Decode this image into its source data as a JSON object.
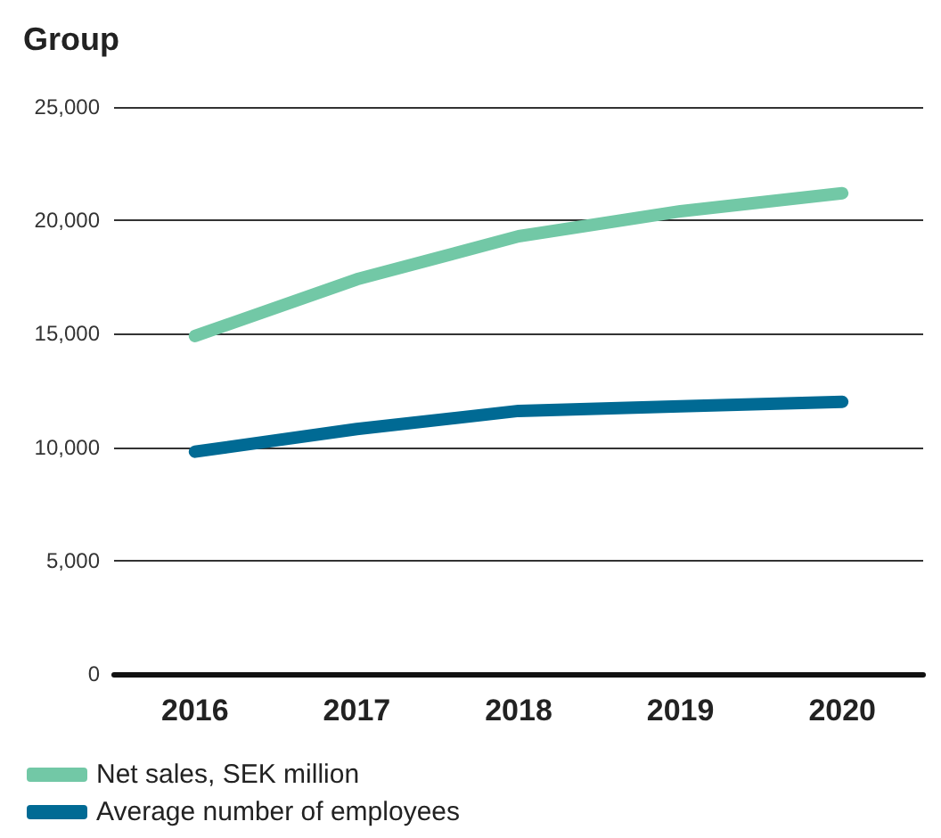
{
  "chart_data": {
    "type": "line",
    "title": "Group",
    "categories": [
      "2016",
      "2017",
      "2018",
      "2019",
      "2020"
    ],
    "series": [
      {
        "name": "Net sales, SEK million",
        "color": "#72c8a6",
        "values": [
          14900,
          17400,
          19300,
          20400,
          21200
        ]
      },
      {
        "name": "Average number of employees",
        "color": "#006a94",
        "values": [
          9800,
          10800,
          11600,
          11800,
          12000
        ]
      }
    ],
    "ylim": [
      0,
      25000
    ],
    "yticks": [
      0,
      {
        "value": 5000,
        "label": "5,000"
      },
      {
        "value": 10000,
        "label": "10,000"
      },
      {
        "value": 15000,
        "label": "15,000"
      },
      {
        "value": 20000,
        "label": "20,000"
      },
      {
        "value": 25000,
        "label": "25,000"
      }
    ],
    "grid": "y",
    "legend": "bottom left",
    "line_style": "solid"
  }
}
